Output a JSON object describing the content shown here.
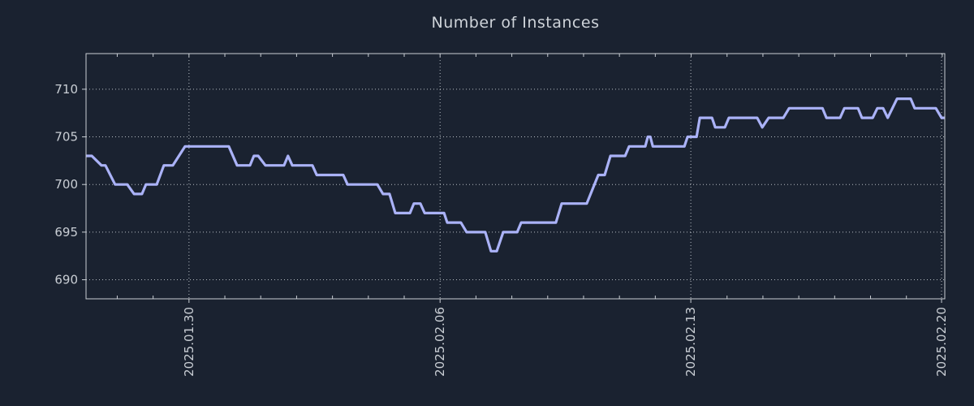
{
  "colors": {
    "background": "#1a2230",
    "line": "#aab2f7",
    "grid": "#c9ced4",
    "axis_border": "#c9ced4",
    "tick_label_text": "#c9ced4",
    "title_text": "#ced3d9"
  },
  "chart_data": {
    "type": "line",
    "title": "Number of Instances",
    "xlabel": "",
    "ylabel": "",
    "x_unit": "days from left edge of plot (left edge = approx 2025.01.27)",
    "xlim": [
      0,
      23.94
    ],
    "ylim": [
      688.0,
      713.74
    ],
    "y_ticks": [
      690,
      695,
      700,
      705,
      710
    ],
    "x_ticks": [
      {
        "d": 2.87,
        "label": "2025.01.30"
      },
      {
        "d": 9.87,
        "label": "2025.02.06"
      },
      {
        "d": 16.86,
        "label": "2025.02.13"
      },
      {
        "d": 23.85,
        "label": "2025.02.20"
      }
    ],
    "x_minor": {
      "start": 0.87,
      "step": 1.0
    },
    "x_tick_rotation": 90,
    "grid": "dotted",
    "legend": "none",
    "series": [
      {
        "name": "instances",
        "points": [
          [
            0.0,
            703
          ],
          [
            0.16,
            703
          ],
          [
            0.43,
            702
          ],
          [
            0.54,
            702
          ],
          [
            0.81,
            700
          ],
          [
            1.15,
            700
          ],
          [
            1.34,
            699
          ],
          [
            1.56,
            699
          ],
          [
            1.67,
            700
          ],
          [
            1.97,
            700
          ],
          [
            2.17,
            702
          ],
          [
            2.42,
            702
          ],
          [
            2.76,
            704
          ],
          [
            3.98,
            704
          ],
          [
            4.21,
            702
          ],
          [
            4.57,
            702
          ],
          [
            4.68,
            703
          ],
          [
            4.8,
            703
          ],
          [
            5.0,
            702
          ],
          [
            5.52,
            702
          ],
          [
            5.63,
            703
          ],
          [
            5.75,
            702
          ],
          [
            6.31,
            702
          ],
          [
            6.43,
            701
          ],
          [
            7.17,
            701
          ],
          [
            7.29,
            700
          ],
          [
            8.12,
            700
          ],
          [
            8.28,
            699
          ],
          [
            8.46,
            699
          ],
          [
            8.62,
            697
          ],
          [
            9.03,
            697
          ],
          [
            9.14,
            698
          ],
          [
            9.32,
            698
          ],
          [
            9.44,
            697
          ],
          [
            9.98,
            697
          ],
          [
            10.07,
            696
          ],
          [
            10.45,
            696
          ],
          [
            10.61,
            695
          ],
          [
            11.13,
            695
          ],
          [
            11.29,
            693
          ],
          [
            11.45,
            693
          ],
          [
            11.63,
            695
          ],
          [
            12.02,
            695
          ],
          [
            12.13,
            696
          ],
          [
            13.1,
            696
          ],
          [
            13.26,
            698
          ],
          [
            13.96,
            698
          ],
          [
            14.28,
            701
          ],
          [
            14.46,
            701
          ],
          [
            14.62,
            703
          ],
          [
            15.03,
            703
          ],
          [
            15.14,
            704
          ],
          [
            15.59,
            704
          ],
          [
            15.66,
            705
          ],
          [
            15.73,
            705
          ],
          [
            15.8,
            704
          ],
          [
            16.68,
            704
          ],
          [
            16.77,
            705
          ],
          [
            17.02,
            705
          ],
          [
            17.11,
            707
          ],
          [
            17.45,
            707
          ],
          [
            17.54,
            706
          ],
          [
            17.81,
            706
          ],
          [
            17.92,
            707
          ],
          [
            18.71,
            707
          ],
          [
            18.85,
            706
          ],
          [
            19.03,
            707
          ],
          [
            19.44,
            707
          ],
          [
            19.6,
            708
          ],
          [
            20.53,
            708
          ],
          [
            20.64,
            707
          ],
          [
            21.02,
            707
          ],
          [
            21.14,
            708
          ],
          [
            21.52,
            708
          ],
          [
            21.63,
            707
          ],
          [
            21.93,
            707
          ],
          [
            22.06,
            708
          ],
          [
            22.22,
            708
          ],
          [
            22.35,
            707
          ],
          [
            22.61,
            709
          ],
          [
            22.99,
            709
          ],
          [
            23.1,
            708
          ],
          [
            23.69,
            708
          ],
          [
            23.85,
            707
          ],
          [
            23.94,
            707
          ]
        ]
      }
    ]
  }
}
